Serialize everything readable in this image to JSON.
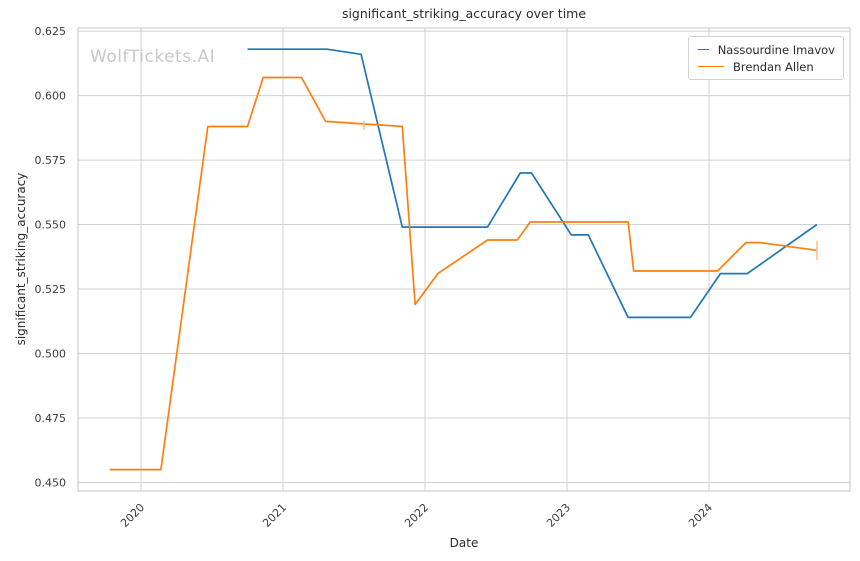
{
  "watermark": "WolfTickets.AI",
  "chart_data": {
    "type": "line",
    "title": "significant_striking_accuracy over time",
    "xlabel": "Date",
    "ylabel": "significant_striking_accuracy",
    "grid": true,
    "legend_position": "upper right",
    "xlim": [
      2019.556,
      2024.993
    ],
    "ylim": [
      0.4467,
      0.6262
    ],
    "x_ticks": [
      2020,
      2021,
      2022,
      2023,
      2024
    ],
    "x_tick_labels": [
      "2020",
      "2021",
      "2022",
      "2023",
      "2024"
    ],
    "y_ticks": [
      0.45,
      0.475,
      0.5,
      0.525,
      0.55,
      0.575,
      0.6,
      0.625
    ],
    "y_tick_labels": [
      "0.450",
      "0.475",
      "0.500",
      "0.525",
      "0.550",
      "0.575",
      "0.600",
      "0.625"
    ],
    "series": [
      {
        "name": "Nassourdine Imavov",
        "color": "#1f77b4",
        "points": [
          [
            2020.75,
            0.618
          ],
          [
            2021.31,
            0.618
          ],
          [
            2021.55,
            0.616
          ],
          [
            2021.84,
            0.549
          ],
          [
            2022.44,
            0.549
          ],
          [
            2022.67,
            0.57
          ],
          [
            2022.75,
            0.57
          ],
          [
            2023.03,
            0.546
          ],
          [
            2023.15,
            0.546
          ],
          [
            2023.43,
            0.514
          ],
          [
            2023.87,
            0.514
          ],
          [
            2024.08,
            0.531
          ],
          [
            2024.27,
            0.531
          ],
          [
            2024.76,
            0.55
          ]
        ],
        "error_caps": []
      },
      {
        "name": "Brendan Allen",
        "color": "#ff7f0e",
        "cap_color": "#ffc08a",
        "points": [
          [
            2019.78,
            0.455
          ],
          [
            2020.14,
            0.455
          ],
          [
            2020.47,
            0.588
          ],
          [
            2020.75,
            0.588
          ],
          [
            2020.86,
            0.607
          ],
          [
            2021.13,
            0.607
          ],
          [
            2021.3,
            0.59
          ],
          [
            2021.84,
            0.588
          ],
          [
            2021.93,
            0.519
          ],
          [
            2022.09,
            0.531
          ],
          [
            2022.44,
            0.544
          ],
          [
            2022.65,
            0.544
          ],
          [
            2022.74,
            0.551
          ],
          [
            2023.43,
            0.551
          ],
          [
            2023.47,
            0.532
          ],
          [
            2024.06,
            0.532
          ],
          [
            2024.26,
            0.543
          ],
          [
            2024.36,
            0.543
          ],
          [
            2024.76,
            0.54
          ]
        ],
        "error_caps": [
          {
            "x": 2021.57,
            "y": 0.5885,
            "half": 0.0018
          },
          {
            "x": 2024.76,
            "y": 0.54,
            "half": 0.0037
          }
        ]
      }
    ],
    "style": {
      "grid_color": "#d2d2d2",
      "spine_color": "#c6c6c6",
      "tick_text_color": "#3b3b3b",
      "background": "#ffffff"
    }
  }
}
